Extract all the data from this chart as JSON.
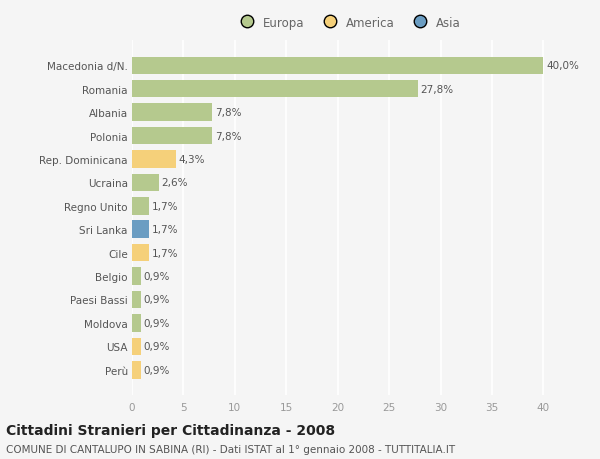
{
  "categories": [
    "Macedonia d/N.",
    "Romania",
    "Albania",
    "Polonia",
    "Rep. Dominicana",
    "Ucraina",
    "Regno Unito",
    "Sri Lanka",
    "Cile",
    "Belgio",
    "Paesi Bassi",
    "Moldova",
    "USA",
    "Perù"
  ],
  "values": [
    40.0,
    27.8,
    7.8,
    7.8,
    4.3,
    2.6,
    1.7,
    1.7,
    1.7,
    0.9,
    0.9,
    0.9,
    0.9,
    0.9
  ],
  "labels": [
    "40,0%",
    "27,8%",
    "7,8%",
    "7,8%",
    "4,3%",
    "2,6%",
    "1,7%",
    "1,7%",
    "1,7%",
    "0,9%",
    "0,9%",
    "0,9%",
    "0,9%",
    "0,9%"
  ],
  "continent": [
    "Europa",
    "Europa",
    "Europa",
    "Europa",
    "America",
    "Europa",
    "Europa",
    "Asia",
    "America",
    "Europa",
    "Europa",
    "Europa",
    "America",
    "America"
  ],
  "bar_colors": [
    "#b5c98e",
    "#b5c98e",
    "#b5c98e",
    "#b5c98e",
    "#f5d07a",
    "#b5c98e",
    "#b5c98e",
    "#6b9dc2",
    "#f5d07a",
    "#b5c98e",
    "#b5c98e",
    "#b5c98e",
    "#f5d07a",
    "#f5d07a"
  ],
  "title": "Cittadini Stranieri per Cittadinanza - 2008",
  "subtitle": "COMUNE DI CANTALUPO IN SABINA (RI) - Dati ISTAT al 1° gennaio 2008 - TUTTITALIA.IT",
  "xlim": [
    0,
    42
  ],
  "xticks": [
    0,
    5,
    10,
    15,
    20,
    25,
    30,
    35,
    40
  ],
  "legend_labels": [
    "Europa",
    "America",
    "Asia"
  ],
  "legend_colors": [
    "#b5c98e",
    "#f5d07a",
    "#6b9dc2"
  ],
  "background_color": "#f5f5f5",
  "grid_color": "#ffffff",
  "bar_height": 0.75,
  "label_fontsize": 7.5,
  "title_fontsize": 10,
  "subtitle_fontsize": 7.5,
  "tick_fontsize": 7.5,
  "ytick_fontsize": 7.5
}
